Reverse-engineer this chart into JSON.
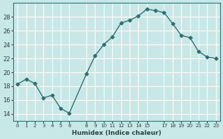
{
  "x": [
    0,
    1,
    2,
    3,
    4,
    5,
    6,
    8,
    9,
    10,
    11,
    12,
    13,
    14,
    15,
    16,
    17,
    18,
    19,
    20,
    21,
    22,
    23
  ],
  "y": [
    18.3,
    19.0,
    18.4,
    16.3,
    16.7,
    14.8,
    14.1,
    19.8,
    22.4,
    24.0,
    25.1,
    27.1,
    27.5,
    28.1,
    29.1,
    28.9,
    28.6,
    27.0,
    25.3,
    25.0,
    23.0,
    22.2,
    22.0
  ],
  "xlabel": "Humidex (Indice chaleur)",
  "bg_color": "#c8e8e8",
  "line_color": "#2e7070",
  "marker_color": "#2e7070",
  "grid_color": "#ffffff",
  "ylim": [
    13,
    30
  ],
  "yticks": [
    14,
    16,
    18,
    20,
    22,
    24,
    26,
    28
  ],
  "xticks": [
    0,
    1,
    2,
    3,
    4,
    5,
    6,
    8,
    9,
    10,
    11,
    12,
    13,
    14,
    15,
    17,
    18,
    19,
    20,
    21,
    22,
    23
  ],
  "xlim": [
    -0.5,
    23.5
  ]
}
